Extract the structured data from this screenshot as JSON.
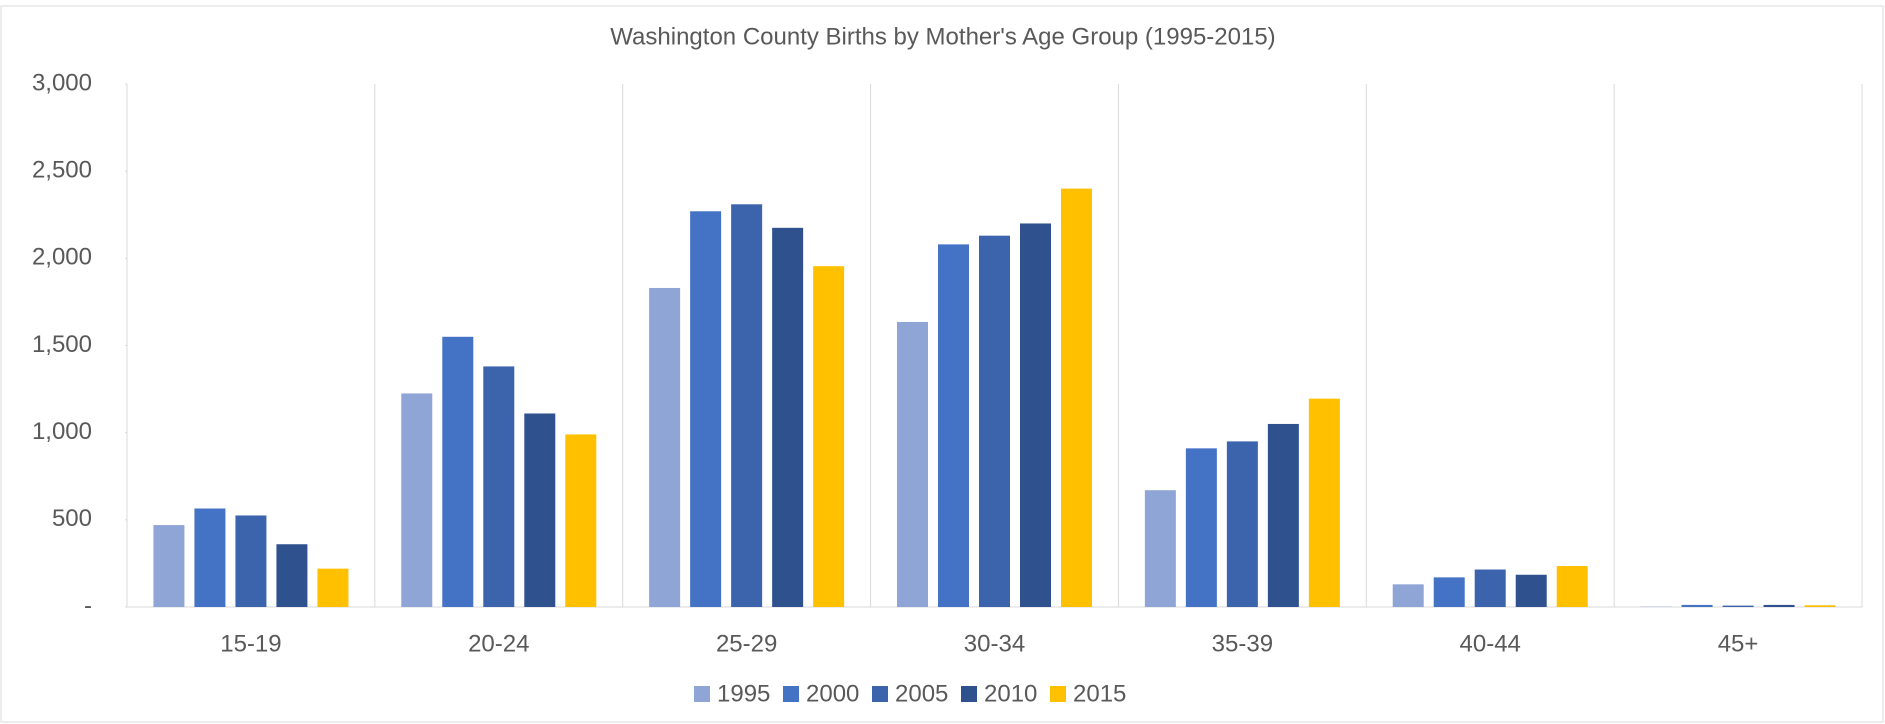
{
  "chart_data": {
    "type": "bar",
    "title": "Washington County Births by Mother's Age Group (1995-2015)",
    "categories": [
      "15-19",
      "20-24",
      "25-29",
      "30-34",
      "35-39",
      "40-44",
      "45+"
    ],
    "series": [
      {
        "name": "1995",
        "color": "#8fa5d6",
        "values": [
          470,
          1225,
          1830,
          1635,
          670,
          130,
          2
        ]
      },
      {
        "name": "2000",
        "color": "#4472c4",
        "values": [
          565,
          1550,
          2270,
          2080,
          910,
          170,
          12
        ]
      },
      {
        "name": "2005",
        "color": "#3b64ad",
        "values": [
          525,
          1380,
          2310,
          2130,
          950,
          215,
          8
        ]
      },
      {
        "name": "2010",
        "color": "#2f528f",
        "values": [
          360,
          1110,
          2175,
          2200,
          1050,
          185,
          12
        ]
      },
      {
        "name": "2015",
        "color": "#ffc000",
        "values": [
          220,
          990,
          1955,
          2400,
          1195,
          235,
          10
        ]
      }
    ],
    "ylim": [
      0,
      3000
    ],
    "yticks": [
      {
        "value": 0,
        "label": "-"
      },
      500,
      {
        "value": 1000,
        "label": "1,000"
      },
      {
        "value": 1500,
        "label": "1,500"
      },
      {
        "value": 2000,
        "label": "2,000"
      },
      {
        "value": 2500,
        "label": "2,500"
      },
      {
        "value": 3000,
        "label": "3,000"
      }
    ],
    "legend": "bottom"
  }
}
